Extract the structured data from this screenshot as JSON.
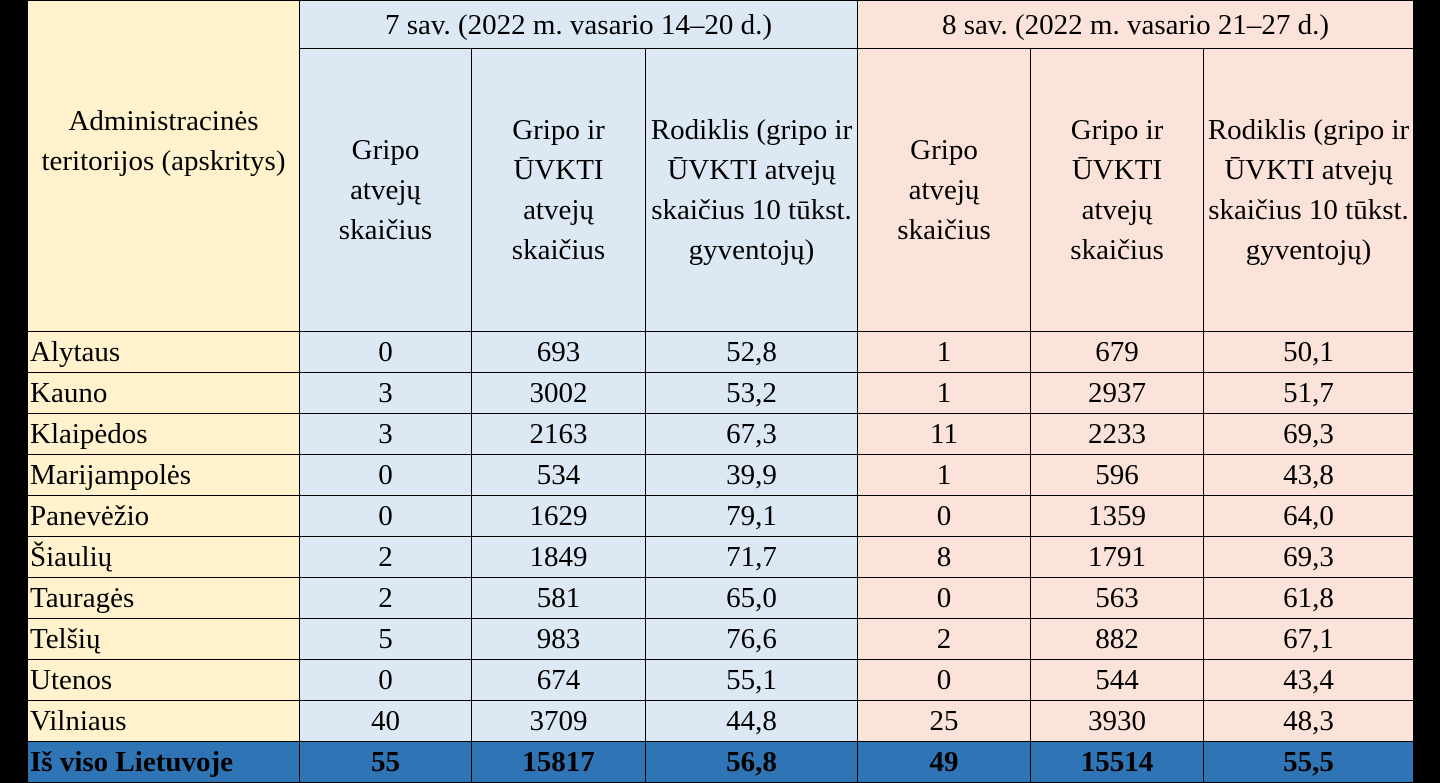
{
  "header": {
    "admin_label": "Administracinės teritorijos (apskritys)",
    "week7": "7 sav. (2022 m. vasario 14–20 d.)",
    "week8": "8 sav. (2022 m. vasario 21–27 d.)",
    "col_flu": "Gripo atvejų skaičius",
    "col_flu_ari": "Gripo ir ŪVKTI atvejų skaičius",
    "col_rate": "Rodiklis (gripo ir ŪVKTI atvejų skaičius 10 tūkst. gyventojų)"
  },
  "rows": [
    {
      "name": "Alytaus",
      "w7_flu": "0",
      "w7_total": "693",
      "w7_rate": "52,8",
      "w8_flu": "1",
      "w8_total": "679",
      "w8_rate": "50,1"
    },
    {
      "name": "Kauno",
      "w7_flu": "3",
      "w7_total": "3002",
      "w7_rate": "53,2",
      "w8_flu": "1",
      "w8_total": "2937",
      "w8_rate": "51,7"
    },
    {
      "name": "Klaipėdos",
      "w7_flu": "3",
      "w7_total": "2163",
      "w7_rate": "67,3",
      "w8_flu": "11",
      "w8_total": "2233",
      "w8_rate": "69,3"
    },
    {
      "name": "Marijampolės",
      "w7_flu": "0",
      "w7_total": "534",
      "w7_rate": "39,9",
      "w8_flu": "1",
      "w8_total": "596",
      "w8_rate": "43,8"
    },
    {
      "name": "Panevėžio",
      "w7_flu": "0",
      "w7_total": "1629",
      "w7_rate": "79,1",
      "w8_flu": "0",
      "w8_total": "1359",
      "w8_rate": "64,0"
    },
    {
      "name": "Šiaulių",
      "w7_flu": "2",
      "w7_total": "1849",
      "w7_rate": "71,7",
      "w8_flu": "8",
      "w8_total": "1791",
      "w8_rate": "69,3"
    },
    {
      "name": "Tauragės",
      "w7_flu": "2",
      "w7_total": "581",
      "w7_rate": "65,0",
      "w8_flu": "0",
      "w8_total": "563",
      "w8_rate": "61,8"
    },
    {
      "name": "Telšių",
      "w7_flu": "5",
      "w7_total": "983",
      "w7_rate": "76,6",
      "w8_flu": "2",
      "w8_total": "882",
      "w8_rate": "67,1"
    },
    {
      "name": "Utenos",
      "w7_flu": "0",
      "w7_total": "674",
      "w7_rate": "55,1",
      "w8_flu": "0",
      "w8_total": "544",
      "w8_rate": "43,4"
    },
    {
      "name": "Vilniaus",
      "w7_flu": "40",
      "w7_total": "3709",
      "w7_rate": "44,8",
      "w8_flu": "25",
      "w8_total": "3930",
      "w8_rate": "48,3"
    }
  ],
  "total": {
    "name": "Iš viso Lietuvoje",
    "w7_flu": "55",
    "w7_total": "15817",
    "w7_rate": "56,8",
    "w8_flu": "49",
    "w8_total": "15514",
    "w8_rate": "55,5"
  },
  "colors": {
    "admin_bg": "#fff2cc",
    "week7_bg": "#dde8f5",
    "week8_bg": "#fce3d9",
    "total_bg": "#2f74b5"
  }
}
